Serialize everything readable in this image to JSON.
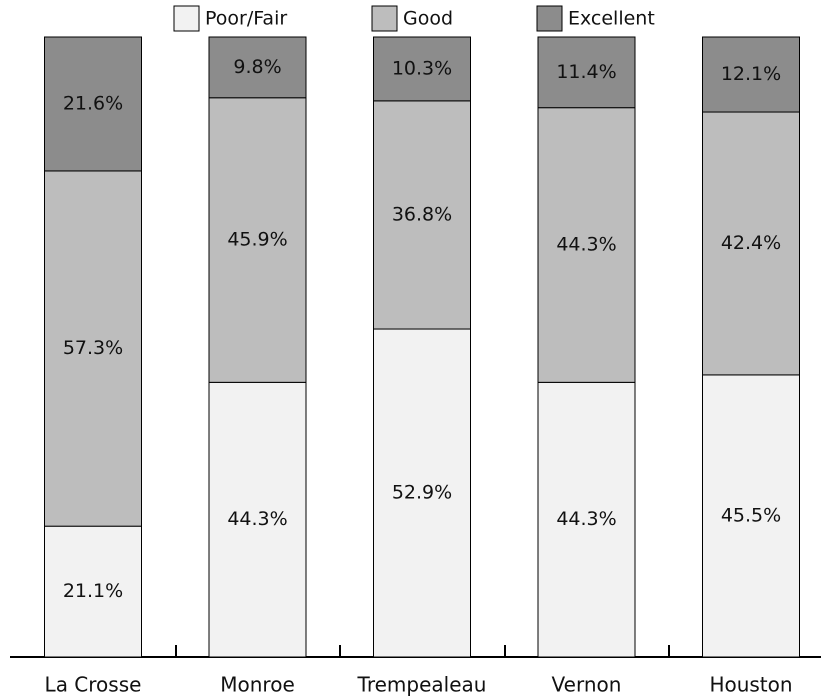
{
  "chart_data": {
    "type": "stacked_bar",
    "categories": [
      "La Crosse",
      "Monroe",
      "Trempealeau",
      "Vernon",
      "Houston"
    ],
    "series": [
      {
        "name": "Poor/Fair",
        "color": "#f2f2f2",
        "values": [
          21.1,
          44.3,
          52.9,
          44.3,
          45.5
        ],
        "value_labels": [
          "21.1%",
          "44.3%",
          "52.9%",
          "44.3%",
          "45.5%"
        ]
      },
      {
        "name": "Good",
        "color": "#bdbdbd",
        "values": [
          57.3,
          45.9,
          36.8,
          44.3,
          42.4
        ],
        "value_labels": [
          "57.3%",
          "45.9%",
          "36.8%",
          "44.3%",
          "42.4%"
        ]
      },
      {
        "name": "Excellent",
        "color": "#8c8c8c",
        "values": [
          21.6,
          9.8,
          10.3,
          11.4,
          12.1
        ],
        "value_labels": [
          "21.6%",
          "9.8%",
          "10.3%",
          "11.4%",
          "12.1%"
        ]
      }
    ],
    "ylim": [
      0,
      100
    ]
  }
}
